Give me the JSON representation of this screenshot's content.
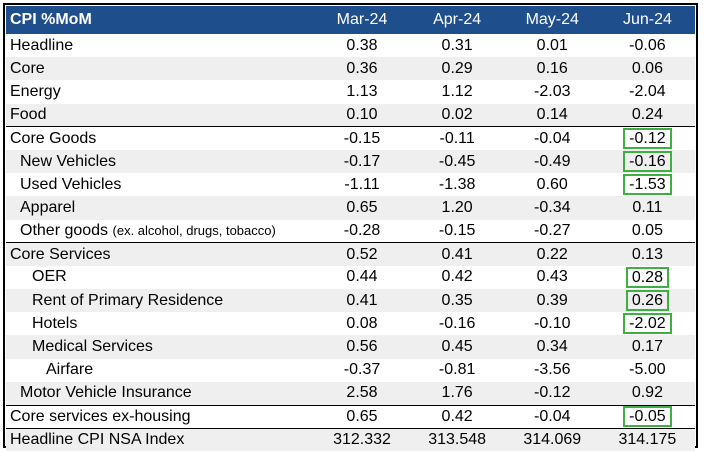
{
  "table": {
    "title": "CPI %MoM",
    "columns": [
      "Mar-24",
      "Apr-24",
      "May-24",
      "Jun-24"
    ],
    "rows": [
      {
        "label": "Headline",
        "note": "",
        "values": [
          "0.38",
          "0.31",
          "0.01",
          "-0.06"
        ],
        "highlight_last": false
      },
      {
        "label": "Core",
        "note": "",
        "values": [
          "0.36",
          "0.29",
          "0.16",
          "0.06"
        ],
        "highlight_last": false
      },
      {
        "label": "Energy",
        "note": "",
        "values": [
          "1.13",
          "1.12",
          "-2.03",
          "-2.04"
        ],
        "highlight_last": false
      },
      {
        "label": "Food",
        "note": "",
        "values": [
          "0.10",
          "0.02",
          "0.14",
          "0.24"
        ],
        "highlight_last": false
      },
      {
        "label": "Core Goods",
        "note": "",
        "values": [
          "-0.15",
          "-0.11",
          "-0.04",
          "-0.12"
        ],
        "highlight_last": true
      },
      {
        "label": "New Vehicles",
        "note": "",
        "values": [
          "-0.17",
          "-0.45",
          "-0.49",
          "-0.16"
        ],
        "highlight_last": true
      },
      {
        "label": "Used Vehicles",
        "note": "",
        "values": [
          "-1.11",
          "-1.38",
          "0.60",
          "-1.53"
        ],
        "highlight_last": true
      },
      {
        "label": "Apparel",
        "note": "",
        "values": [
          "0.65",
          "1.20",
          "-0.34",
          "0.11"
        ],
        "highlight_last": false
      },
      {
        "label": "Other goods",
        "note": "(ex. alcohol, drugs, tobacco)",
        "values": [
          "-0.28",
          "-0.15",
          "-0.27",
          "0.05"
        ],
        "highlight_last": false
      },
      {
        "label": "Core Services",
        "note": "",
        "values": [
          "0.52",
          "0.41",
          "0.22",
          "0.13"
        ],
        "highlight_last": false
      },
      {
        "label": "OER",
        "note": "",
        "values": [
          "0.44",
          "0.42",
          "0.43",
          "0.28"
        ],
        "highlight_last": true
      },
      {
        "label": "Rent of Primary Residence",
        "note": "",
        "values": [
          "0.41",
          "0.35",
          "0.39",
          "0.26"
        ],
        "highlight_last": true
      },
      {
        "label": "Hotels",
        "note": "",
        "values": [
          "0.08",
          "-0.16",
          "-0.10",
          "-2.02"
        ],
        "highlight_last": true
      },
      {
        "label": "Medical Services",
        "note": "",
        "values": [
          "0.56",
          "0.45",
          "0.34",
          "0.17"
        ],
        "highlight_last": false
      },
      {
        "label": "Airfare",
        "note": "",
        "values": [
          "-0.37",
          "-0.81",
          "-3.56",
          "-5.00"
        ],
        "highlight_last": false
      },
      {
        "label": "Motor Vehicle Insurance",
        "note": "",
        "values": [
          "2.58",
          "1.76",
          "-0.12",
          "0.92"
        ],
        "highlight_last": false
      },
      {
        "label": "Core services ex-housing",
        "note": "",
        "values": [
          "0.65",
          "0.42",
          "-0.04",
          "-0.05"
        ],
        "highlight_last": true
      },
      {
        "label": "Headline CPI NSA Index",
        "note": "",
        "values": [
          "312.332",
          "313.548",
          "314.069",
          "314.175"
        ],
        "highlight_last": false
      }
    ]
  },
  "colors": {
    "header_bg": "#1f4e8c",
    "header_text": "#ffffff",
    "row_shade": "#efefef",
    "highlight_box": "#3cb043"
  }
}
